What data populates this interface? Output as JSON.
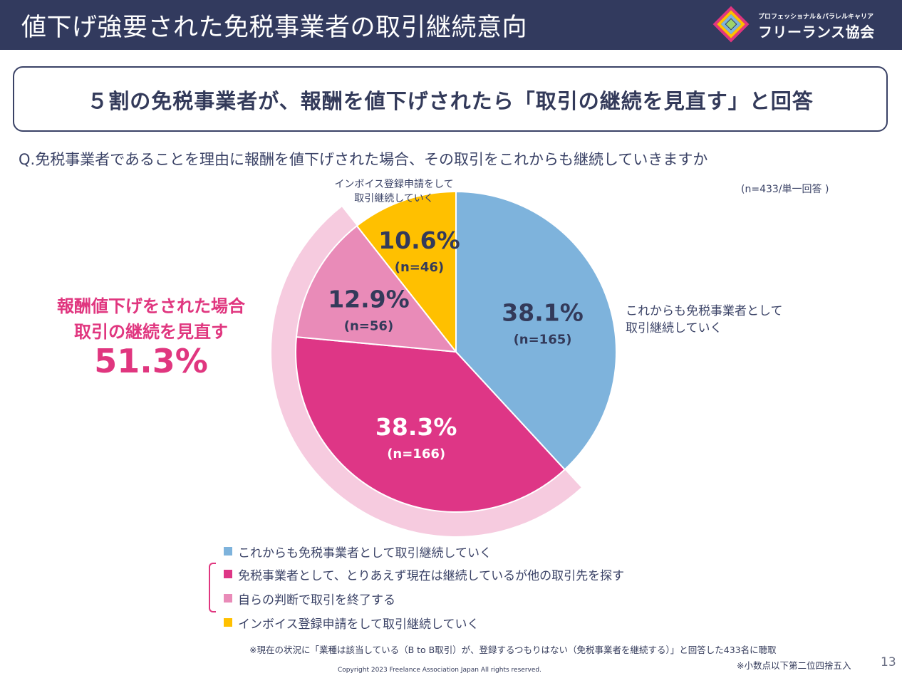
{
  "header": {
    "title": "値下げ強要された免税事業者の取引継続意向",
    "logo_sub": "プロフェッショナル＆パラレルキャリア",
    "logo_name": "フリーランス協会",
    "logo_icon": "logo-mark-icon"
  },
  "headline": "５割の免税事業者が、報酬を値下げされたら「取引の継続を見直す」と回答",
  "question": "Q.免税事業者であることを理由に報酬を値下げされた場合、その取引をこれからも継続していきますか",
  "sample_note": "(n=433/単一回答 )",
  "callout": {
    "line1": "報酬値下げをされた場合",
    "line2": "取引の継続を見直す",
    "value": "51.3%"
  },
  "chart_data": {
    "type": "pie",
    "start_angle": "12 o'clock",
    "direction": "clockwise",
    "slices": [
      {
        "label": "これからも免税事業者として取引継続していく",
        "value": 38.1,
        "pct_text": "38.1%",
        "n_text": "(n=165)",
        "color": "#7eb3dc"
      },
      {
        "label": "免税事業者として、とりあえず現在は継続しているが他の取引先を探す",
        "value": 38.3,
        "pct_text": "38.3%",
        "n_text": "(n=166)",
        "color": "#de3686"
      },
      {
        "label": "自らの判断で取引を終了する",
        "value": 12.9,
        "pct_text": "12.9%",
        "n_text": "(n=56)",
        "color": "#e98bb8"
      },
      {
        "label": "インボイス登録申請をして取引継続していく",
        "value": 10.6,
        "pct_text": "10.6%",
        "n_text": "(n=46)",
        "color": "#ffc000"
      }
    ],
    "outside_labels": [
      {
        "lines": [
          "これからも免税事業者として",
          "取引継続していく"
        ]
      },
      {
        "lines": [
          "インボイス登録申請をして",
          "取引継続していく"
        ]
      }
    ],
    "highlight_ring_color": "#f6cbdf",
    "pct_label_color_dark": "#333a5a",
    "pct_label_color_light": "#ffffff"
  },
  "legend": [
    {
      "label": "これからも免税事業者として取引継続していく",
      "color": "#7eb3dc"
    },
    {
      "label": "免税事業者として、とりあえず現在は継続しているが他の取引先を探す",
      "color": "#de3686"
    },
    {
      "label": "自らの判断で取引を終了する",
      "color": "#e98bb8"
    },
    {
      "label": "インボイス登録申請をして取引継続していく",
      "color": "#ffc000"
    }
  ],
  "footnote1": "※現在の状況に「業種は該当している（B to B取引）が、登録するつもりはない（免税事業者を継続する）」と回答した433名に聴取",
  "footnote2": "※小数点以下第二位四捨五入",
  "copyright": "Copyright 2023 Freelance Association Japan  All rights reserved.",
  "page_number": "13"
}
